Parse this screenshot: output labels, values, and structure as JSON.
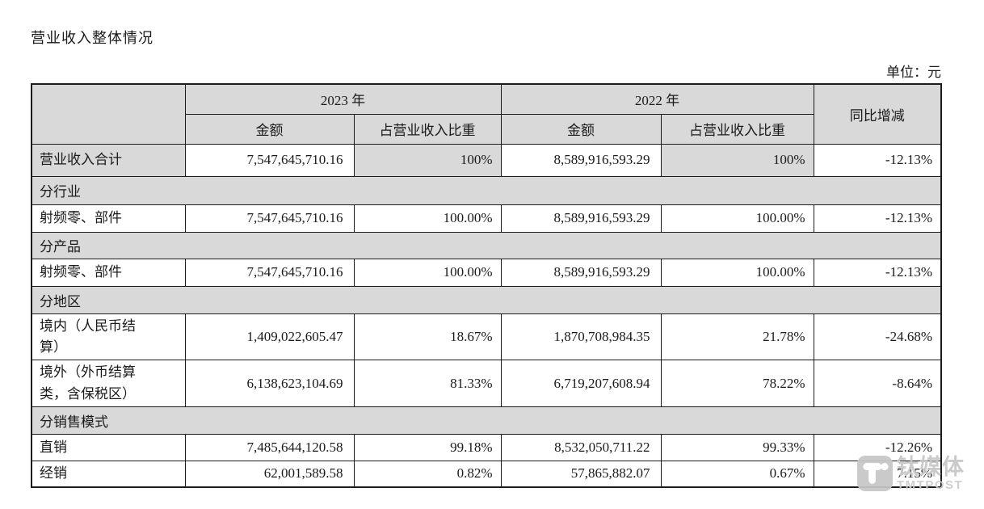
{
  "page": {
    "title": "营业收入整体情况",
    "unit_note": "单位：元"
  },
  "table": {
    "header": {
      "year_2023": "2023 年",
      "year_2022": "2022 年",
      "amount": "金额",
      "ratio": "占营业收入比重",
      "yoy": "同比增减"
    },
    "rows": [
      {
        "type": "data",
        "shaded": true,
        "label": "营业收入合计",
        "a2023": "7,547,645,710.16",
        "p2023": "100%",
        "a2022": "8,589,916,593.29",
        "p2022": "100%",
        "yoy": "-12.13%"
      },
      {
        "type": "section",
        "label": "分行业"
      },
      {
        "type": "data",
        "label": "射频零、部件",
        "a2023": "7,547,645,710.16",
        "p2023": "100.00%",
        "a2022": "8,589,916,593.29",
        "p2022": "100.00%",
        "yoy": "-12.13%"
      },
      {
        "type": "section",
        "label": "分产品"
      },
      {
        "type": "data",
        "label": "射频零、部件",
        "a2023": "7,547,645,710.16",
        "p2023": "100.00%",
        "a2022": "8,589,916,593.29",
        "p2022": "100.00%",
        "yoy": "-12.13%"
      },
      {
        "type": "section",
        "label": "分地区"
      },
      {
        "type": "data",
        "label": "境内（人民币结算）",
        "a2023": "1,409,022,605.47",
        "p2023": "18.67%",
        "a2022": "1,870,708,984.35",
        "p2022": "21.78%",
        "yoy": "-24.68%"
      },
      {
        "type": "data",
        "label": "境外（外币结算类，含保税区）",
        "a2023": "6,138,623,104.69",
        "p2023": "81.33%",
        "a2022": "6,719,207,608.94",
        "p2022": "78.22%",
        "yoy": "-8.64%"
      },
      {
        "type": "section",
        "label": "分销售模式"
      },
      {
        "type": "data",
        "label": "直销",
        "a2023": "7,485,644,120.58",
        "p2023": "99.18%",
        "a2022": "8,532,050,711.22",
        "p2022": "99.33%",
        "yoy": "-12.26%"
      },
      {
        "type": "data",
        "label": "经销",
        "a2023": "62,001,589.58",
        "p2023": "0.82%",
        "a2022": "57,865,882.07",
        "p2022": "0.67%",
        "yoy": "7.15%"
      }
    ]
  },
  "watermark": {
    "brand": "钛媒体",
    "brand_en": "TMTPOST"
  },
  "colors": {
    "table_shade": "#d9d9d9",
    "border": "#1c1c1c",
    "watermark_gray": "#c7c7c7"
  }
}
